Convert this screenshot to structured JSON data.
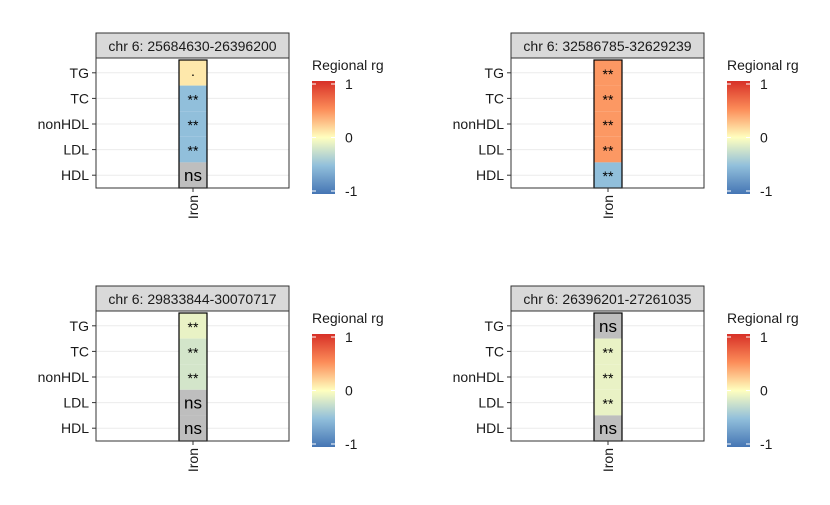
{
  "chart_data": [
    {
      "type": "heatmap",
      "title": "chr 6: 25684630-26396200",
      "x_categories": [
        "Iron"
      ],
      "y_categories": [
        "TG",
        "TC",
        "nonHDL",
        "LDL",
        "HDL"
      ],
      "values": [
        0.1,
        -0.5,
        -0.5,
        -0.5,
        null
      ],
      "labels": [
        "·",
        "**",
        "**",
        "**",
        "ns"
      ],
      "legend": {
        "title": "Regional rg",
        "ticks": [
          "1",
          "0",
          "-1"
        ],
        "range": [
          -1,
          1
        ]
      }
    },
    {
      "type": "heatmap",
      "title": "chr 6: 32586785-32629239",
      "x_categories": [
        "Iron"
      ],
      "y_categories": [
        "TG",
        "TC",
        "nonHDL",
        "LDL",
        "HDL"
      ],
      "values": [
        0.45,
        0.45,
        0.45,
        0.45,
        -0.5
      ],
      "labels": [
        "**",
        "**",
        "**",
        "**",
        "**"
      ],
      "legend": {
        "title": "Regional rg",
        "ticks": [
          "1",
          "0",
          "-1"
        ],
        "range": [
          -1,
          1
        ]
      }
    },
    {
      "type": "heatmap",
      "title": "chr 6: 29833844-30070717",
      "x_categories": [
        "Iron"
      ],
      "y_categories": [
        "TG",
        "TC",
        "nonHDL",
        "LDL",
        "HDL"
      ],
      "values": [
        -0.1,
        -0.2,
        -0.2,
        null,
        null
      ],
      "labels": [
        "**",
        "**",
        "**",
        "ns",
        "ns"
      ],
      "legend": {
        "title": "Regional rg",
        "ticks": [
          "1",
          "0",
          "-1"
        ],
        "range": [
          -1,
          1
        ]
      }
    },
    {
      "type": "heatmap",
      "title": "chr 6: 26396201-27261035",
      "x_categories": [
        "Iron"
      ],
      "y_categories": [
        "TG",
        "TC",
        "nonHDL",
        "LDL",
        "HDL"
      ],
      "values": [
        null,
        -0.1,
        -0.1,
        -0.1,
        null
      ],
      "labels": [
        "ns",
        "**",
        "**",
        "**",
        "ns"
      ],
      "legend": {
        "title": "Regional rg",
        "ticks": [
          "1",
          "0",
          "-1"
        ],
        "range": [
          -1,
          1
        ]
      }
    }
  ],
  "colors": {
    "low": "#4575b4",
    "mid": "#ffffbf",
    "high": "#d73027",
    "na": "#bebebe",
    "strip": "#d9d9d9",
    "grid": "#ebebeb",
    "border": "#333333"
  }
}
